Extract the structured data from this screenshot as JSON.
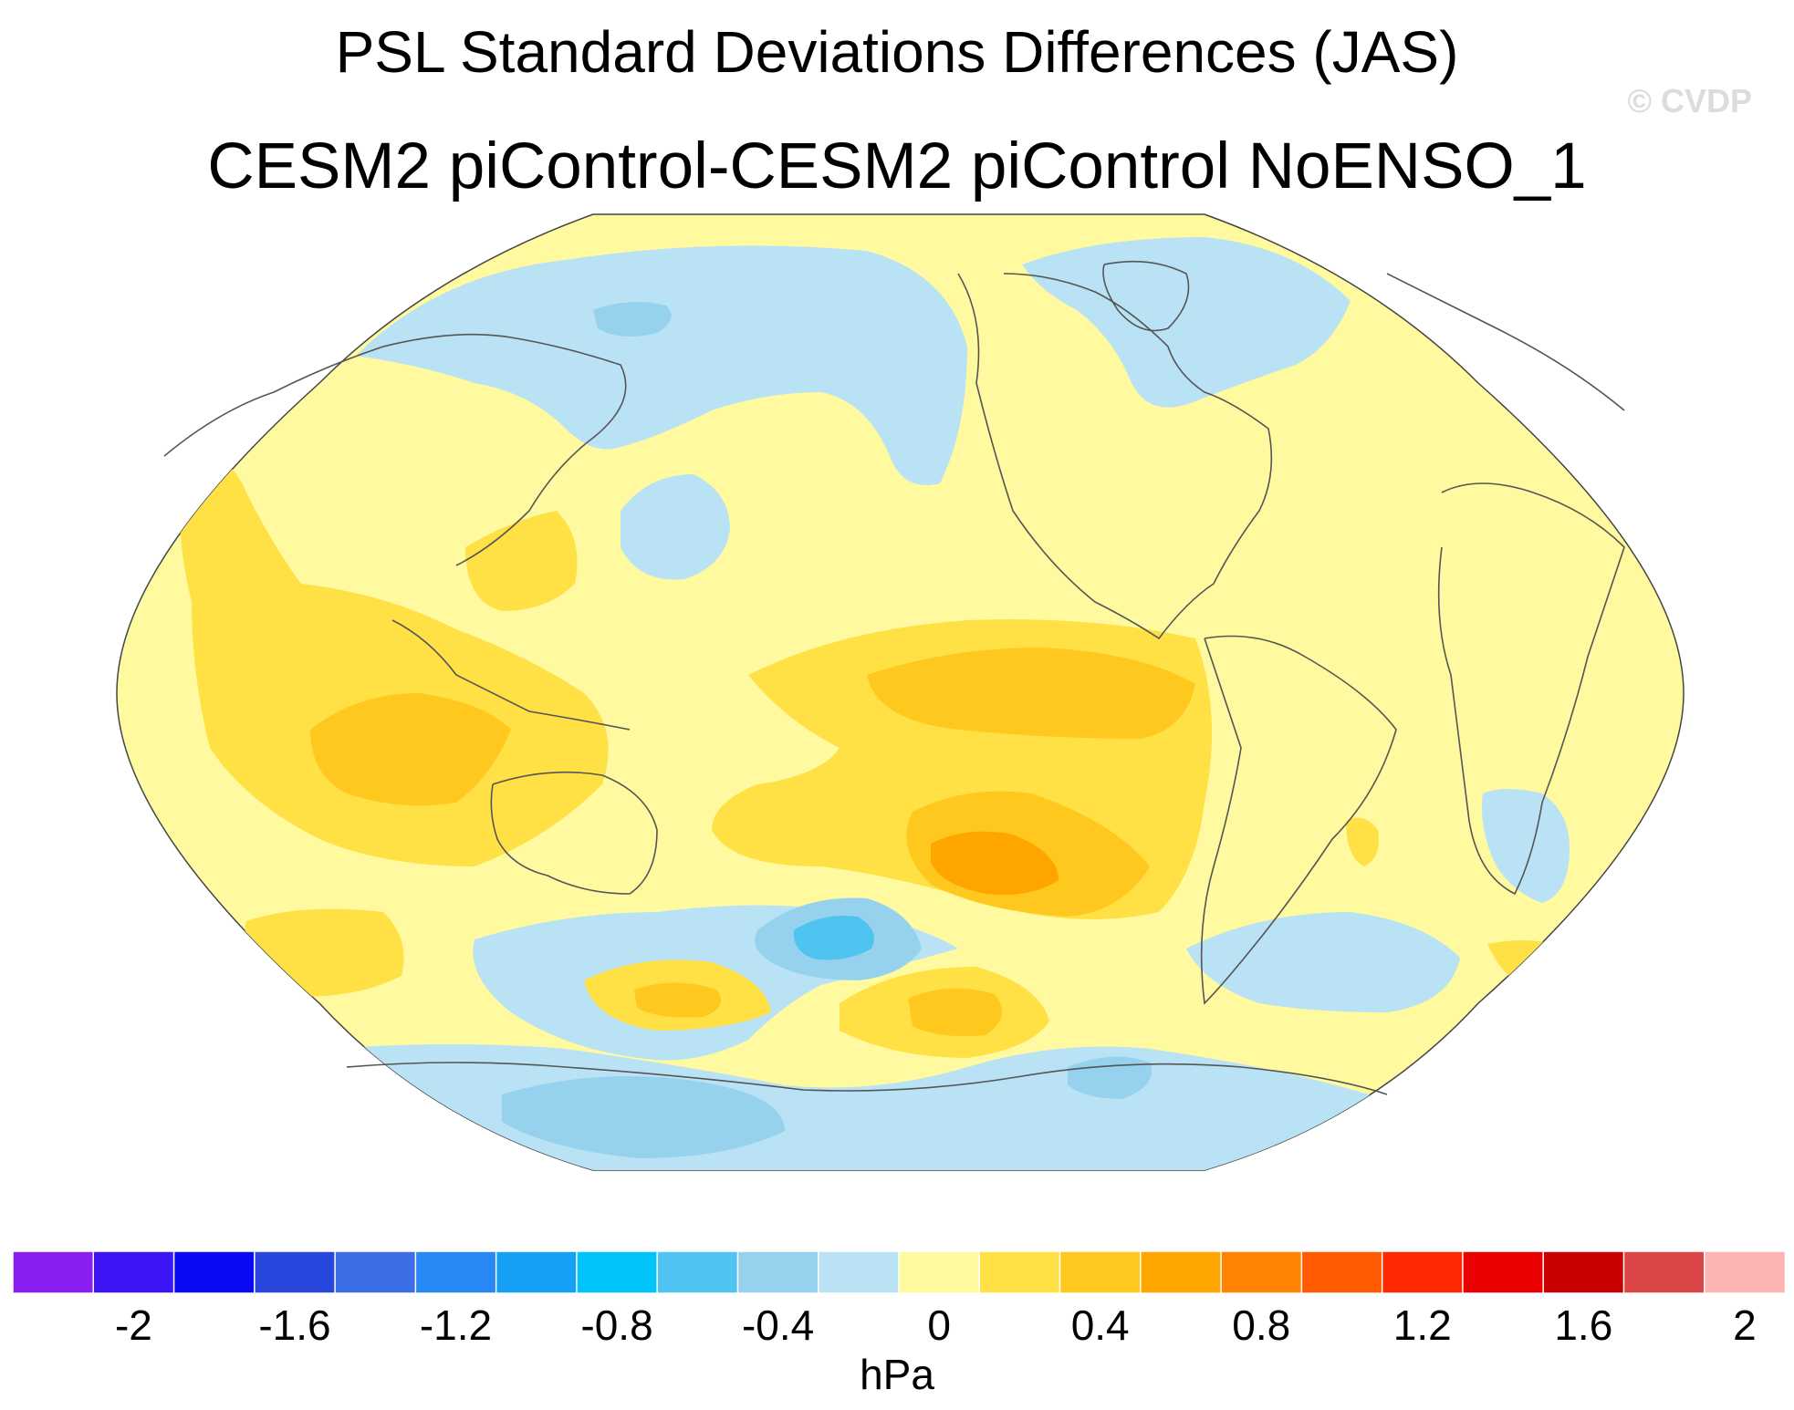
{
  "title": "PSL Standard Deviations Differences (JAS)",
  "subtitle": "CESM2 piControl-CESM2 piControl NoENSO_1",
  "credit": "© CVDP",
  "colorbar": {
    "units": "hPa",
    "colors": [
      "#8b1ef0",
      "#3c14f5",
      "#0a0af5",
      "#2846dc",
      "#3c6ee6",
      "#2888f5",
      "#14a0f5",
      "#00c3fa",
      "#50c4f0",
      "#96d2ee",
      "#b9e2f5",
      "#fffaa0",
      "#ffe146",
      "#ffc81e",
      "#ffa500",
      "#ff8200",
      "#ff5a00",
      "#ff2800",
      "#eb0000",
      "#c80000",
      "#dc4646",
      "#ffb4b4"
    ],
    "tick_labels": [
      "-2",
      "-1.6",
      "-1.2",
      "-0.8",
      "-0.4",
      "0",
      "0.4",
      "0.8",
      "1.2",
      "1.6",
      "2"
    ]
  },
  "map": {
    "projection": "Robinson (Pacific-centered)",
    "field": "PSL standard deviation difference",
    "background_color": "#fffaa0",
    "coastline_color": "#555555"
  }
}
